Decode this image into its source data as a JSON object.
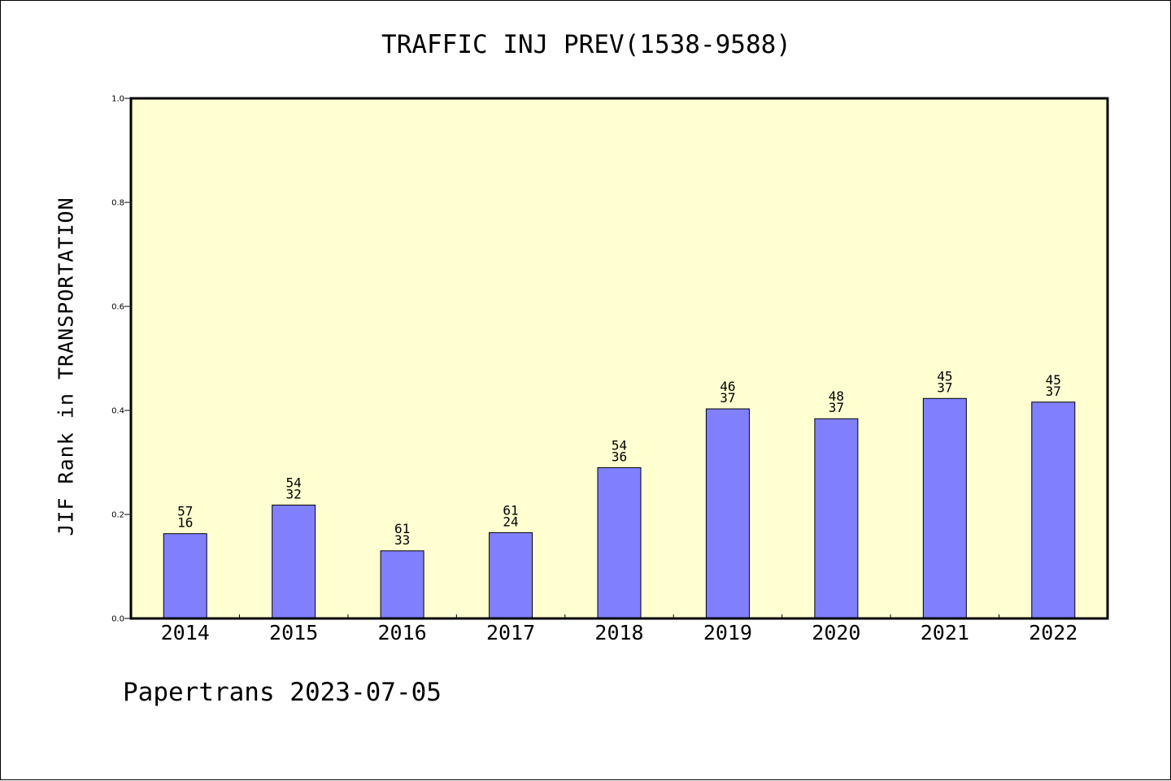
{
  "chart_data": {
    "type": "bar",
    "title": "TRAFFIC INJ PREV(1538-9588)",
    "xlabel": "",
    "ylabel": "JIF Rank in TRANSPORTATION",
    "ylim": [
      0,
      1.0
    ],
    "yticks": [
      "0.0",
      "0.2",
      "0.4",
      "0.6",
      "0.8",
      "1.0"
    ],
    "categories": [
      "2014",
      "2015",
      "2016",
      "2017",
      "2018",
      "2019",
      "2020",
      "2021",
      "2022"
    ],
    "values": [
      0.163,
      0.218,
      0.13,
      0.165,
      0.29,
      0.403,
      0.384,
      0.423,
      0.416
    ],
    "label_top": [
      "57",
      "54",
      "61",
      "61",
      "54",
      "46",
      "48",
      "45",
      "45"
    ],
    "label_bottom": [
      "16",
      "32",
      "33",
      "24",
      "36",
      "37",
      "37",
      "37",
      "37"
    ],
    "grid": false,
    "colors": {
      "plot_background": "#ffffd2",
      "bar_fill": "#8080ff",
      "bar_stroke": "#000000"
    }
  },
  "footer": "Papertrans 2023-07-05"
}
